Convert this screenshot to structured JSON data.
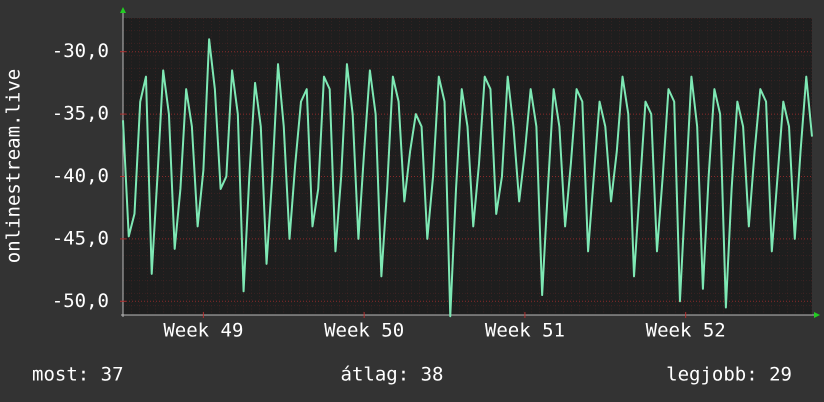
{
  "chart_data": {
    "type": "line",
    "y_label": "onlinestream.live",
    "x": [
      0,
      0.25,
      0.5,
      0.75,
      1,
      1.25,
      1.5,
      1.75,
      2,
      2.25,
      2.5,
      2.75,
      3,
      3.25,
      3.5,
      3.75,
      4,
      4.25,
      4.5,
      4.75,
      5,
      5.25,
      5.5,
      5.75,
      6,
      6.25,
      6.5,
      6.75,
      7,
      7.25,
      7.5,
      7.75,
      8,
      8.25,
      8.5,
      8.75,
      9,
      9.25,
      9.5,
      9.75,
      10,
      10.25,
      10.5,
      10.75,
      11,
      11.25,
      11.5,
      11.75,
      12,
      12.25,
      12.5,
      12.75,
      13,
      13.25,
      13.5,
      13.75,
      14,
      14.25,
      14.5,
      14.75,
      15,
      15.25,
      15.5,
      15.75,
      16,
      16.25,
      16.5,
      16.75,
      17,
      17.25,
      17.5,
      17.75,
      18,
      18.25,
      18.5,
      18.75,
      19,
      19.25,
      19.5,
      19.75,
      20,
      20.25,
      20.5,
      20.75,
      21,
      21.25,
      21.5,
      21.75,
      22,
      22.25,
      22.5,
      22.75,
      23,
      23.25,
      23.5,
      23.75,
      24,
      24.25,
      24.5,
      24.75,
      25,
      25.25,
      25.5,
      25.75,
      26,
      26.25,
      26.5,
      26.75,
      27,
      27.25,
      27.5,
      27.75,
      28,
      28.25,
      28.5,
      28.75,
      29,
      29.25,
      29.5,
      29.75,
      30
    ],
    "series": [
      {
        "color": "#7ee8b4",
        "values": [
          -35.5,
          -44.8,
          -43,
          -34,
          -32,
          -47.8,
          -40,
          -31.5,
          -35,
          -45.8,
          -41,
          -33,
          -36,
          -44,
          -39.5,
          -29,
          -33,
          -41,
          -40,
          -31.5,
          -35,
          -49.2,
          -40,
          -32.5,
          -36,
          -47,
          -40,
          -31,
          -36,
          -45,
          -39,
          -34,
          -33,
          -44,
          -41,
          -32,
          -33,
          -46,
          -40,
          -31,
          -35,
          -45,
          -38,
          -31.5,
          -35,
          -48,
          -41,
          -32,
          -34,
          -42,
          -38,
          -35,
          -36,
          -45,
          -40,
          -32,
          -34,
          -51.2,
          -41,
          -33,
          -36,
          -44,
          -39,
          -32,
          -33,
          -43,
          -40,
          -32,
          -36,
          -42,
          -38,
          -33,
          -36,
          -49.5,
          -41,
          -33,
          -36,
          -44,
          -39,
          -33,
          -34,
          -46,
          -40,
          -34,
          -36,
          -42,
          -38,
          -32,
          -35,
          -48,
          -41,
          -34,
          -35,
          -46,
          -40,
          -33,
          -34,
          -50,
          -41,
          -32,
          -36,
          -49,
          -40,
          -33,
          -35,
          -50.5,
          -41,
          -34,
          -36,
          -44,
          -38,
          -33,
          -34,
          -46,
          -40,
          -34,
          -36,
          -45,
          -38,
          -32,
          -36.8
        ]
      }
    ],
    "xlim": [
      0,
      30
    ],
    "xticks": [
      {
        "value": 3.5,
        "label": "Week 49"
      },
      {
        "value": 10.5,
        "label": "Week 50"
      },
      {
        "value": 17.5,
        "label": "Week 51"
      },
      {
        "value": 24.5,
        "label": "Week 52"
      }
    ],
    "ylim": [
      -51.1,
      -27.3
    ],
    "yticks": [
      {
        "value": -30,
        "label": "-30,0"
      },
      {
        "value": -35,
        "label": "-35,0"
      },
      {
        "value": -40,
        "label": "-40,0"
      },
      {
        "value": -45,
        "label": "-45,0"
      },
      {
        "value": -50,
        "label": "-50,0"
      }
    ],
    "grid": true,
    "footer": [
      "most: 37",
      "átlag: 38",
      "legjobb: 29"
    ]
  }
}
